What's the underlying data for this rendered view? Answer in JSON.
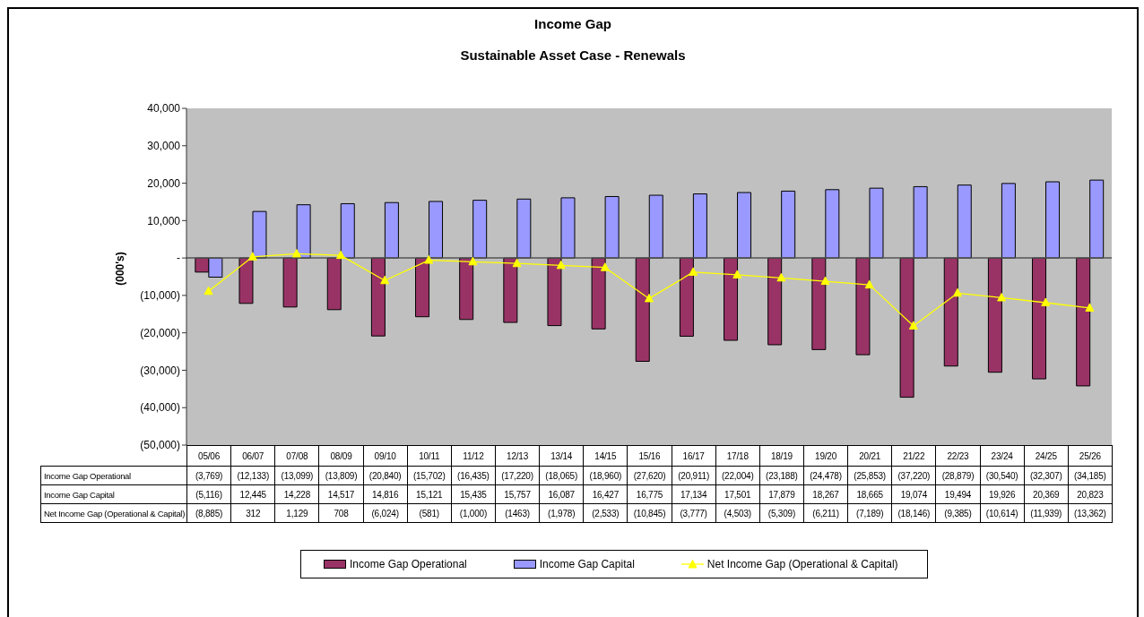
{
  "chart_data": {
    "type": "bar",
    "title": "Income Gap",
    "subtitle": "Sustainable Asset Case - Renewals",
    "ylabel": "(000's)",
    "categories": [
      "05/06",
      "06/07",
      "07/08",
      "08/09",
      "09/10",
      "10/11",
      "11/12",
      "12/13",
      "13/14",
      "14/15",
      "15/16",
      "16/17",
      "17/18",
      "18/19",
      "19/20",
      "20/21",
      "21/22",
      "22/23",
      "23/24",
      "24/25",
      "25/26"
    ],
    "series": [
      {
        "name": "Income Gap Operational",
        "color": "#993366",
        "values": [
          -3769,
          -12133,
          -13099,
          -13809,
          -20840,
          -15702,
          -16435,
          -17220,
          -18065,
          -18960,
          -27620,
          -20911,
          -22004,
          -23188,
          -24478,
          -25853,
          -37220,
          -28879,
          -30540,
          -32307,
          -34185
        ],
        "value_labels": [
          "(3,769)",
          "(12,133)",
          "(13,099)",
          "(13,809)",
          "(20,840)",
          "(15,702)",
          "(16,435)",
          "(17,220)",
          "(18,065)",
          "(18,960)",
          "(27,620)",
          "(20,911)",
          "(22,004)",
          "(23,188)",
          "(24,478)",
          "(25,853)",
          "(37,220)",
          "(28,879)",
          "(30,540)",
          "(32,307)",
          "(34,185)"
        ]
      },
      {
        "name": "Income Gap Capital",
        "color": "#9999ff",
        "values": [
          -5116,
          12445,
          14228,
          14517,
          14816,
          15121,
          15435,
          15757,
          16087,
          16427,
          16775,
          17134,
          17501,
          17879,
          18267,
          18665,
          19074,
          19494,
          19926,
          20369,
          20823
        ],
        "value_labels": [
          "(5,116)",
          "12,445",
          "14,228",
          "14,517",
          "14,816",
          "15,121",
          "15,435",
          "15,757",
          "16,087",
          "16,427",
          "16,775",
          "17,134",
          "17,501",
          "17,879",
          "18,267",
          "18,665",
          "19,074",
          "19,494",
          "19,926",
          "20,369",
          "20,823"
        ]
      },
      {
        "name": "Net Income Gap (Operational & Capital)",
        "type": "line",
        "color": "#ffff00",
        "values": [
          -8885,
          312,
          1129,
          708,
          -6024,
          -581,
          -1000,
          -1463,
          -1978,
          -2533,
          -10845,
          -3777,
          -4503,
          -5309,
          -6211,
          -7189,
          -18146,
          -9385,
          -10614,
          -11939,
          -13362
        ],
        "value_labels": [
          "(8,885)",
          "312",
          "1,129",
          "708",
          "(6,024)",
          "(581)",
          "(1,000)",
          "(1463)",
          "(1,978)",
          "(2,533)",
          "(10,845)",
          "(3,777)",
          "(4,503)",
          "(5,309)",
          "(6,211)",
          "(7,189)",
          "(18,146)",
          "(9,385)",
          "(10,614)",
          "(11,939)",
          "(13,362)"
        ]
      }
    ],
    "ylim": [
      -50000,
      40000
    ],
    "yticks": [
      {
        "value": 40000,
        "label": "40,000"
      },
      {
        "value": 30000,
        "label": "30,000"
      },
      {
        "value": 20000,
        "label": "20,000"
      },
      {
        "value": 10000,
        "label": "10,000"
      },
      {
        "value": 0,
        "label": "-"
      },
      {
        "value": -10000,
        "label": "(10,000)"
      },
      {
        "value": -20000,
        "label": "(20,000)"
      },
      {
        "value": -30000,
        "label": "(30,000)"
      },
      {
        "value": -40000,
        "label": "(40,000)"
      },
      {
        "value": -50000,
        "label": "(50,000)"
      }
    ],
    "legend": "bottom",
    "marker": "triangle"
  }
}
